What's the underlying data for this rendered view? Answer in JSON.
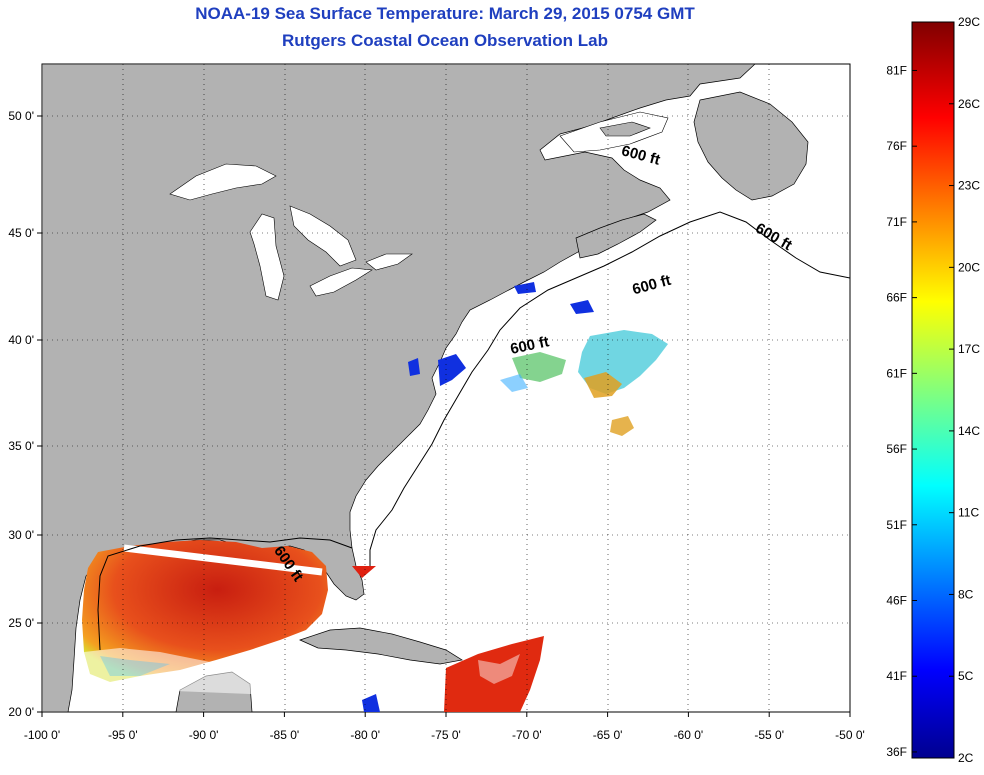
{
  "title": "NOAA-19 Sea Surface Temperature:  March 29, 2015 0754 GMT",
  "subtitle": "Rutgers Coastal Ocean Observation Lab",
  "map": {
    "lon_range": [
      -100,
      -50
    ],
    "lat_range": [
      20,
      52.5
    ],
    "lon_ticks": [
      {
        "value": -100,
        "label": "-100 0'"
      },
      {
        "value": -95,
        "label": "-95 0'"
      },
      {
        "value": -90,
        "label": "-90 0'"
      },
      {
        "value": -85,
        "label": "-85 0'"
      },
      {
        "value": -80,
        "label": "-80 0'"
      },
      {
        "value": -75,
        "label": "-75 0'"
      },
      {
        "value": -70,
        "label": "-70 0'"
      },
      {
        "value": -65,
        "label": "-65 0'"
      },
      {
        "value": -60,
        "label": "-60 0'"
      },
      {
        "value": -55,
        "label": "-55 0'"
      },
      {
        "value": -50,
        "label": "-50 0'"
      }
    ],
    "lat_ticks": [
      {
        "value": 20,
        "label": "20 0'"
      },
      {
        "value": 25,
        "label": "25 0'"
      },
      {
        "value": 30,
        "label": "30 0'"
      },
      {
        "value": 35,
        "label": "35 0'"
      },
      {
        "value": 40,
        "label": "40 0'"
      },
      {
        "value": 45,
        "label": "45 0'"
      },
      {
        "value": 50,
        "label": "50 0'"
      }
    ],
    "grid": "dotted",
    "land_color": "#b2b2b2",
    "depth_contour_label": "600 ft"
  },
  "colorbar": {
    "min_c": 2,
    "max_c": 29,
    "celsius_labels": [
      "29C",
      "26C",
      "23C",
      "20C",
      "17C",
      "14C",
      "11C",
      "8C",
      "5C",
      "2C"
    ],
    "fahrenheit_labels": [
      "81F",
      "76F",
      "71F",
      "66F",
      "61F",
      "56F",
      "51F",
      "46F",
      "41F",
      "36F"
    ]
  }
}
